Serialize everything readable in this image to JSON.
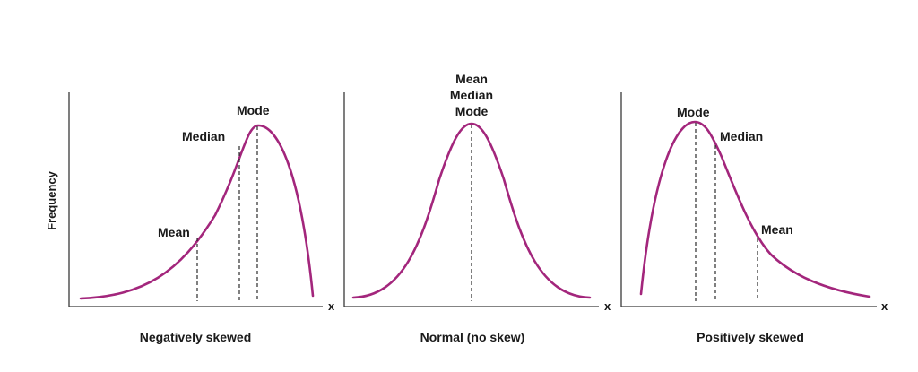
{
  "y_axis_label": "Frequency",
  "colors": {
    "curve": "#a3267c",
    "axis": "#3a3a3a",
    "text": "#1a1a1a"
  },
  "panels": [
    {
      "caption": "Negatively skewed",
      "x_label": "x",
      "labels": {
        "mean": "Mean",
        "median": "Median",
        "mode": "Mode"
      }
    },
    {
      "caption": "Normal (no skew)",
      "x_label": "x",
      "labels": {
        "mean": "Mean",
        "median": "Median",
        "mode": "Mode"
      }
    },
    {
      "caption": "Positively skewed",
      "x_label": "x",
      "labels": {
        "mean": "Mean",
        "median": "Median",
        "mode": "Mode"
      }
    }
  ]
}
